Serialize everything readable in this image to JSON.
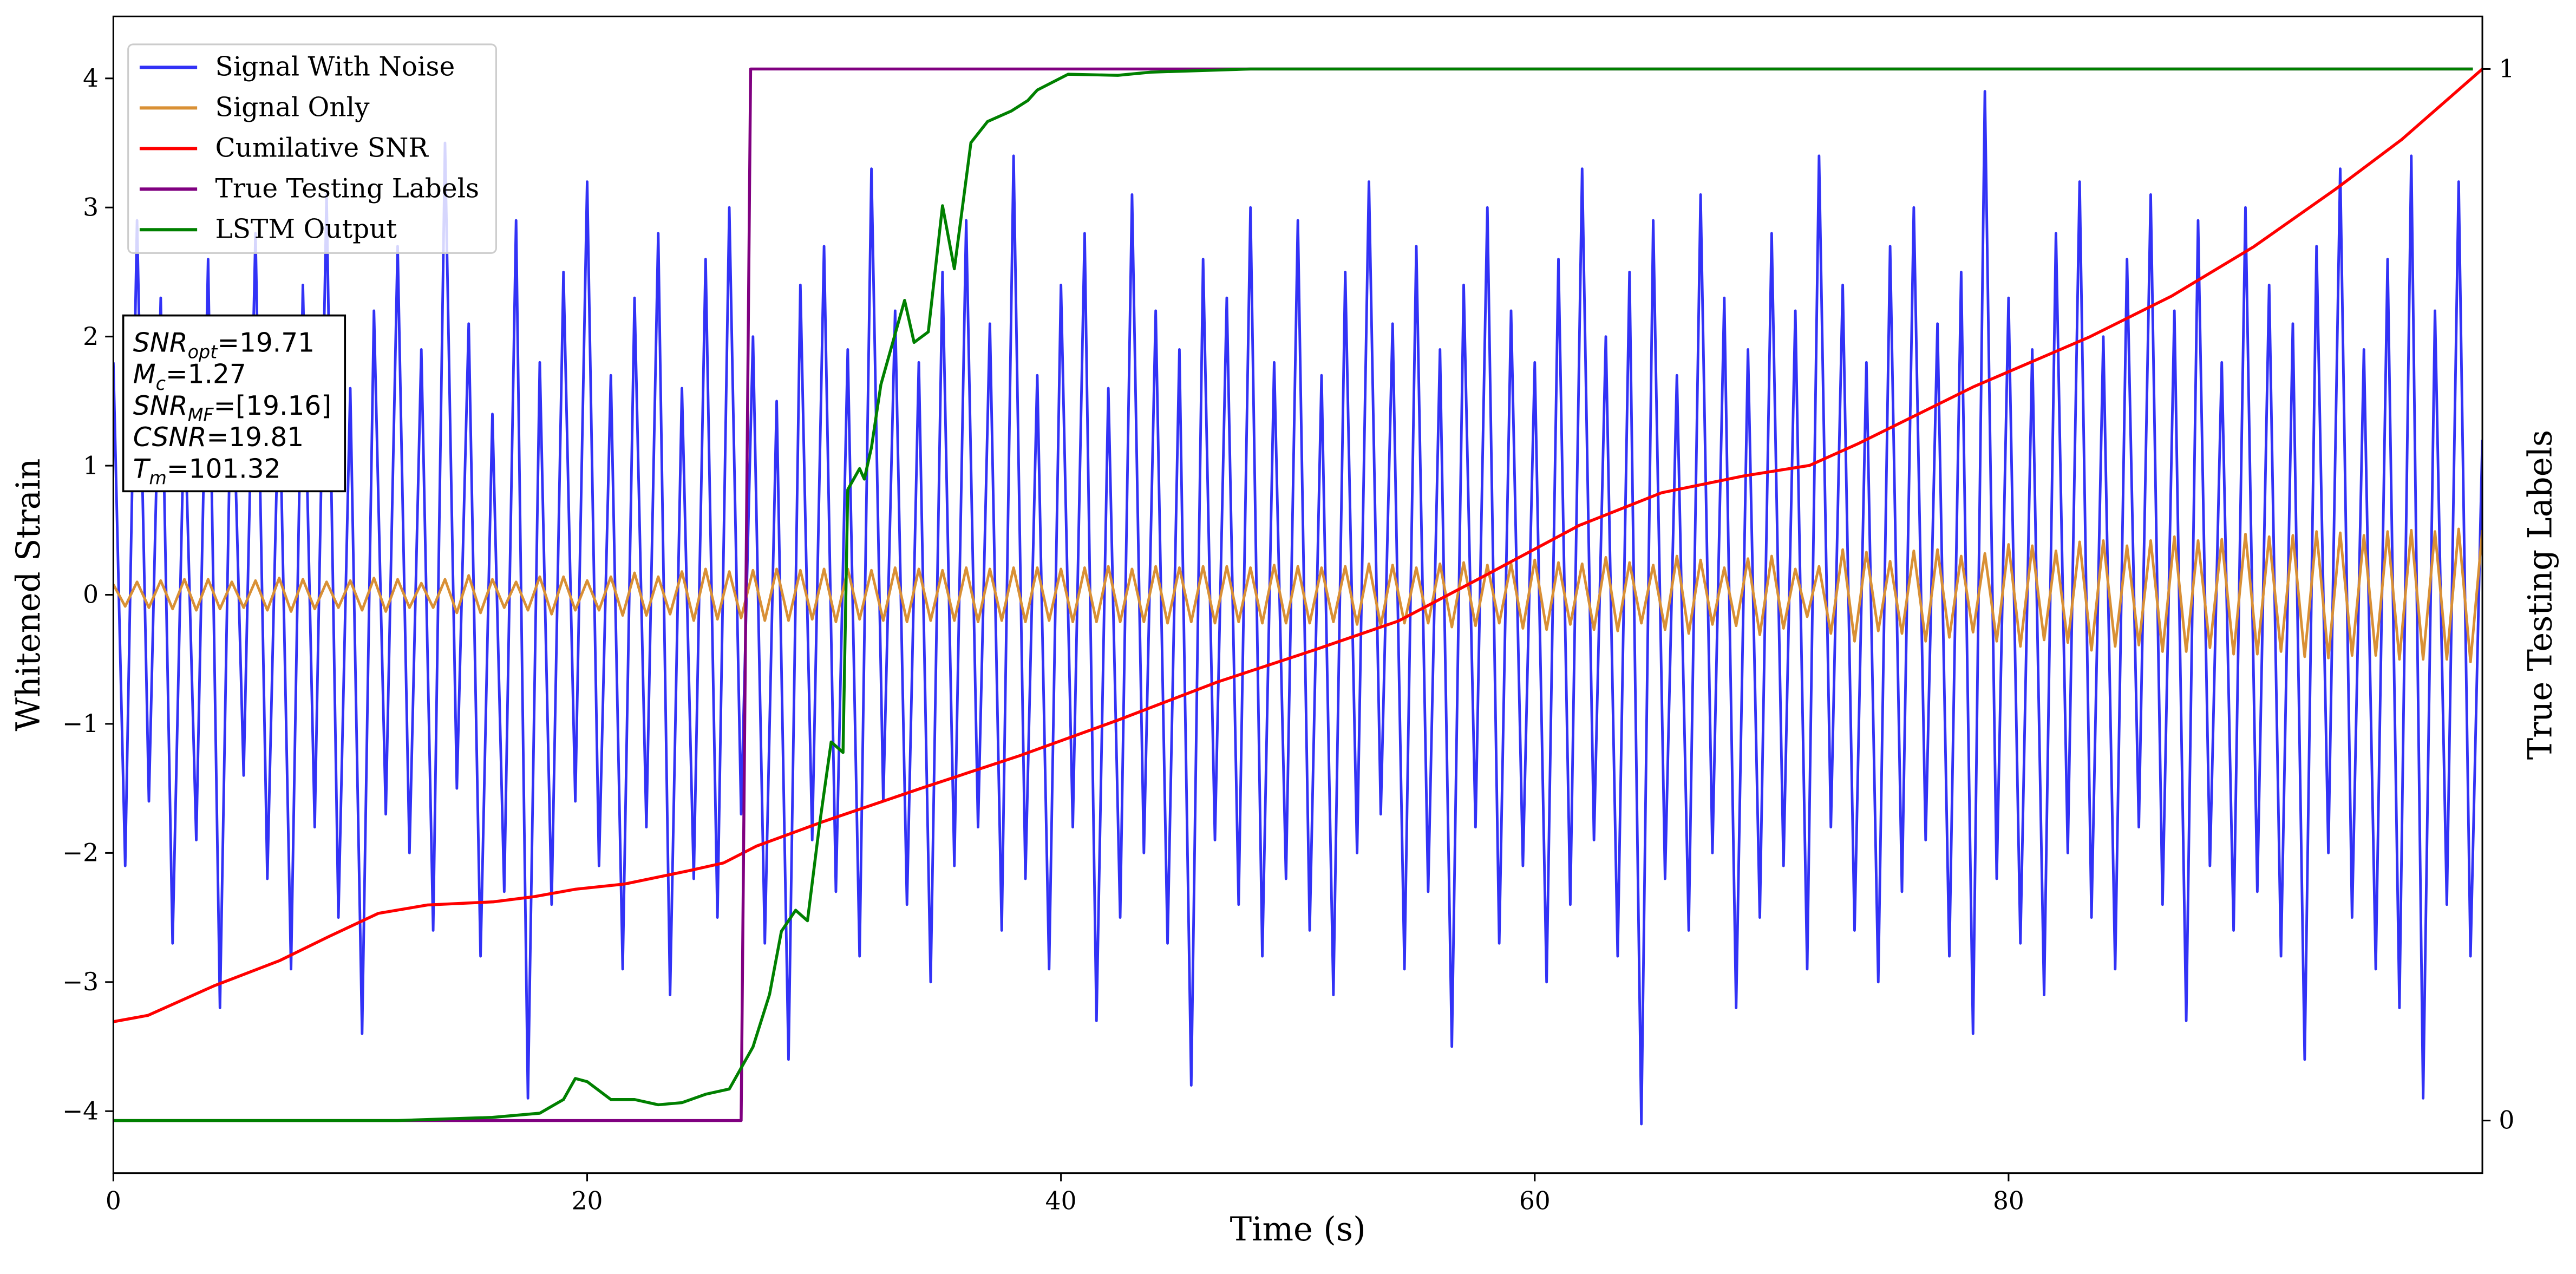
{
  "chart_data": {
    "type": "line",
    "xlabel": "Time (s)",
    "ylabel": "Whitened Strain",
    "y2label": "True Testing Labels",
    "xlim": [
      0,
      100
    ],
    "ylim": [
      -4.48,
      4.48
    ],
    "y2lim": [
      -0.05,
      1.05
    ],
    "xticks": [
      0,
      20,
      40,
      60,
      80
    ],
    "yticks": [
      {
        "value": -4,
        "label": "−4"
      },
      {
        "value": -3,
        "label": "−3"
      },
      {
        "value": -2,
        "label": "−2"
      },
      {
        "value": -1,
        "label": "−1"
      },
      0,
      1,
      2,
      3,
      4
    ],
    "y2ticks": [
      0,
      1
    ],
    "legend": "upper left",
    "x": [
      0,
      0.5,
      1,
      1.5,
      2,
      2.5,
      3,
      3.5,
      4,
      4.5,
      5,
      5.5,
      6,
      6.5,
      7,
      7.5,
      8,
      8.5,
      9,
      9.5,
      10,
      10.5,
      11,
      11.5,
      12,
      12.5,
      13,
      13.5,
      14,
      14.5,
      15,
      15.5,
      16,
      16.5,
      17,
      17.5,
      18,
      18.5,
      19,
      19.5,
      20,
      20.5,
      21,
      21.5,
      22,
      22.5,
      23,
      23.5,
      24,
      24.5,
      25,
      25.5,
      26,
      26.5,
      27,
      27.5,
      28,
      28.5,
      29,
      29.5,
      30,
      30.5,
      31,
      31.5,
      32,
      32.5,
      33,
      33.5,
      34,
      34.5,
      35,
      35.5,
      36,
      36.5,
      37,
      37.5,
      38,
      38.5,
      39,
      39.5,
      40,
      40.5,
      41,
      41.5,
      42,
      42.5,
      43,
      43.5,
      44,
      44.5,
      45,
      45.5,
      46,
      46.5,
      47,
      47.5,
      48,
      48.5,
      49,
      49.5,
      50,
      50.5,
      51,
      51.5,
      52,
      52.5,
      53,
      53.5,
      54,
      54.5,
      55,
      55.5,
      56,
      56.5,
      57,
      57.5,
      58,
      58.5,
      59,
      59.5,
      60,
      60.5,
      61,
      61.5,
      62,
      62.5,
      63,
      63.5,
      64,
      64.5,
      65,
      65.5,
      66,
      66.5,
      67,
      67.5,
      68,
      68.5,
      69,
      69.5,
      70,
      70.5,
      71,
      71.5,
      72,
      72.5,
      73,
      73.5,
      74,
      74.5,
      75,
      75.5,
      76,
      76.5,
      77,
      77.5,
      78,
      78.5,
      79,
      79.5,
      80,
      80.5,
      81,
      81.5,
      82,
      82.5,
      83,
      83.5,
      84,
      84.5,
      85,
      85.5,
      86,
      86.5,
      87,
      87.5,
      88,
      88.5,
      89,
      89.5,
      90,
      90.5,
      91,
      91.5,
      92,
      92.5,
      93,
      93.5,
      94,
      94.5,
      95,
      95.5,
      96,
      96.5,
      97,
      97.5,
      98,
      98.5,
      99,
      99.5,
      100
    ],
    "series": [
      {
        "name": "Signal With Noise",
        "color": "#3232f6",
        "values": [
          1.8,
          -2.1,
          2.9,
          -1.6,
          2.3,
          -2.7,
          1.5,
          -1.9,
          2.6,
          -3.2,
          2.0,
          -1.4,
          2.8,
          -2.2,
          1.7,
          -2.9,
          2.4,
          -1.8,
          3.1,
          -2.5,
          1.6,
          -3.4,
          2.2,
          -1.7,
          2.7,
          -2.0,
          1.9,
          -2.6,
          3.5,
          -1.5,
          2.1,
          -2.8,
          1.4,
          -2.3,
          2.9,
          -3.9,
          1.8,
          -2.4,
          2.5,
          -1.6,
          3.2,
          -2.1,
          1.7,
          -2.9,
          2.3,
          -1.8,
          2.8,
          -3.1,
          1.6,
          -2.2,
          2.6,
          -2.5,
          3.0,
          -1.7,
          2.0,
          -2.7,
          1.5,
          -3.6,
          2.4,
          -1.9,
          2.7,
          -2.3,
          1.9,
          -2.8,
          3.3,
          -1.6,
          2.2,
          -2.4,
          1.8,
          -3.0,
          2.5,
          -2.1,
          2.9,
          -1.8,
          2.1,
          -2.6,
          3.4,
          -2.2,
          1.7,
          -2.9,
          2.4,
          -1.8,
          2.8,
          -3.3,
          1.6,
          -2.5,
          3.1,
          -2.0,
          2.2,
          -2.7,
          1.9,
          -3.8,
          2.6,
          -1.9,
          2.3,
          -2.4,
          3.0,
          -2.8,
          1.8,
          -2.2,
          2.9,
          -2.6,
          1.7,
          -3.1,
          2.5,
          -2.0,
          3.2,
          -1.7,
          2.1,
          -2.9,
          2.7,
          -2.3,
          1.9,
          -3.5,
          2.4,
          -1.8,
          3.0,
          -2.7,
          2.2,
          -2.1,
          1.8,
          -3.0,
          2.6,
          -2.4,
          3.3,
          -1.9,
          2.0,
          -2.8,
          2.5,
          -4.1,
          2.9,
          -2.2,
          1.7,
          -2.6,
          3.1,
          -2.0,
          2.3,
          -3.2,
          1.9,
          -2.5,
          2.8,
          -2.1,
          2.2,
          -2.9,
          3.4,
          -1.8,
          2.4,
          -2.6,
          1.8,
          -3.0,
          2.7,
          -2.3,
          3.0,
          -1.9,
          2.1,
          -2.8,
          2.5,
          -3.4,
          3.9,
          -2.2,
          2.3,
          -2.7,
          1.9,
          -3.1,
          2.8,
          -2.0,
          3.2,
          -2.5,
          2.0,
          -2.9,
          2.6,
          -1.8,
          3.1,
          -2.4,
          2.2,
          -3.3,
          2.9,
          -2.1,
          1.8,
          -2.6,
          3.0,
          -2.3,
          2.4,
          -2.8,
          2.1,
          -3.6,
          2.7,
          -2.0,
          3.3,
          -2.5,
          1.9,
          -2.9,
          2.6,
          -3.2,
          3.4,
          -3.9,
          2.2,
          -2.4,
          3.2,
          -2.8,
          1.2
        ]
      },
      {
        "name": "Signal Only",
        "color": "#d99035",
        "values": [
          0.08,
          -0.09,
          0.1,
          -0.1,
          0.11,
          -0.11,
          0.12,
          -0.12,
          0.12,
          -0.11,
          0.1,
          -0.1,
          0.11,
          -0.12,
          0.13,
          -0.13,
          0.12,
          -0.11,
          0.1,
          -0.1,
          0.11,
          -0.12,
          0.13,
          -0.13,
          0.12,
          -0.1,
          0.09,
          -0.1,
          0.12,
          -0.14,
          0.15,
          -0.14,
          0.12,
          -0.1,
          0.1,
          -0.12,
          0.14,
          -0.15,
          0.14,
          -0.12,
          0.11,
          -0.12,
          0.14,
          -0.16,
          0.17,
          -0.16,
          0.14,
          -0.15,
          0.18,
          -0.2,
          0.2,
          -0.19,
          0.18,
          -0.18,
          0.19,
          -0.2,
          0.2,
          -0.2,
          0.19,
          -0.19,
          0.2,
          -0.21,
          0.2,
          -0.19,
          0.19,
          -0.2,
          0.21,
          -0.21,
          0.2,
          -0.2,
          0.19,
          -0.2,
          0.21,
          -0.21,
          0.2,
          -0.2,
          0.21,
          -0.21,
          0.21,
          -0.2,
          0.2,
          -0.21,
          0.21,
          -0.21,
          0.22,
          -0.21,
          0.2,
          -0.21,
          0.22,
          -0.22,
          0.21,
          -0.21,
          0.22,
          -0.22,
          0.22,
          -0.21,
          0.21,
          -0.22,
          0.23,
          -0.22,
          0.22,
          -0.22,
          0.21,
          -0.21,
          0.22,
          -0.23,
          0.24,
          -0.24,
          0.23,
          -0.22,
          0.21,
          -0.22,
          0.24,
          -0.25,
          0.25,
          -0.24,
          0.23,
          -0.22,
          0.24,
          -0.26,
          0.27,
          -0.27,
          0.25,
          -0.23,
          0.24,
          -0.27,
          0.29,
          -0.28,
          0.25,
          -0.22,
          0.23,
          -0.27,
          0.3,
          -0.3,
          0.27,
          -0.23,
          0.21,
          -0.24,
          0.28,
          -0.31,
          0.3,
          -0.26,
          0.2,
          -0.17,
          0.22,
          -0.3,
          0.35,
          -0.36,
          0.33,
          -0.28,
          0.26,
          -0.3,
          0.34,
          -0.36,
          0.35,
          -0.33,
          0.3,
          -0.29,
          0.32,
          -0.36,
          0.39,
          -0.4,
          0.38,
          -0.35,
          0.34,
          -0.37,
          0.41,
          -0.43,
          0.42,
          -0.4,
          0.38,
          -0.39,
          0.42,
          -0.44,
          0.45,
          -0.44,
          0.42,
          -0.41,
          0.43,
          -0.46,
          0.47,
          -0.46,
          0.45,
          -0.44,
          0.46,
          -0.48,
          0.49,
          -0.49,
          0.48,
          -0.47,
          0.46,
          -0.47,
          0.49,
          -0.5,
          0.5,
          -0.5,
          0.49,
          -0.5,
          0.51,
          -0.52,
          0.5
        ]
      },
      {
        "name": "Cumilative SNR",
        "color": "#ff0000",
        "axis": "y2",
        "x": [
          0,
          1.46,
          4.24,
          7.01,
          9.1,
          11.18,
          13.26,
          16.04,
          17.78,
          19.51,
          21.6,
          24.38,
          25.76,
          27.15,
          29.93,
          34.1,
          38.26,
          42.43,
          46.6,
          50.76,
          54.24,
          57.71,
          61.88,
          65.35,
          68.82,
          71.6,
          73.68,
          78.54,
          83.4,
          86.88,
          90.35,
          93.82,
          96.6,
          100
        ],
        "values": [
          0.094,
          0.1,
          0.128,
          0.152,
          0.175,
          0.197,
          0.205,
          0.208,
          0.213,
          0.22,
          0.225,
          0.238,
          0.245,
          0.261,
          0.284,
          0.316,
          0.347,
          0.381,
          0.417,
          0.448,
          0.475,
          0.516,
          0.566,
          0.597,
          0.613,
          0.623,
          0.644,
          0.698,
          0.745,
          0.784,
          0.831,
          0.886,
          0.933,
          1.0
        ]
      },
      {
        "name": "True Testing Labels",
        "color": "#800080",
        "axis": "y2",
        "x": [
          0,
          26.5,
          26.9,
          99.6
        ],
        "values": [
          0,
          0,
          1,
          1
        ]
      },
      {
        "name": "LSTM Output",
        "color": "#008000",
        "axis": "y2",
        "x": [
          0,
          12,
          16,
          18,
          19,
          19.5,
          20,
          21,
          22,
          23,
          24,
          25,
          26,
          27,
          27.7,
          28.2,
          28.8,
          29.3,
          29.8,
          30.3,
          30.8,
          31.0,
          31.5,
          31.7,
          32.0,
          32.4,
          33.4,
          33.8,
          34.4,
          35.0,
          35.5,
          36.2,
          36.9,
          37.9,
          38.6,
          39.0,
          40.3,
          42.4,
          43.8,
          48,
          99.6
        ],
        "values": [
          0,
          0,
          0.003,
          0.007,
          0.02,
          0.04,
          0.037,
          0.02,
          0.02,
          0.015,
          0.017,
          0.025,
          0.03,
          0.07,
          0.12,
          0.18,
          0.2,
          0.19,
          0.28,
          0.36,
          0.35,
          0.6,
          0.62,
          0.61,
          0.64,
          0.7,
          0.78,
          0.74,
          0.75,
          0.87,
          0.81,
          0.93,
          0.95,
          0.96,
          0.97,
          0.98,
          0.995,
          0.994,
          0.997,
          1.0,
          1.0
        ]
      }
    ],
    "annotation": [
      {
        "main": "SNR",
        "sub": "opt",
        "rest": "=19.71"
      },
      {
        "main": "M",
        "sub": "c",
        "rest": "=1.27"
      },
      {
        "main": "SNR",
        "sub": "MF",
        "rest": "=[19.16]"
      },
      {
        "main": "CSNR",
        "rest": "=19.81"
      },
      {
        "main": "T",
        "sub": "m",
        "rest": "=101.32"
      }
    ]
  }
}
